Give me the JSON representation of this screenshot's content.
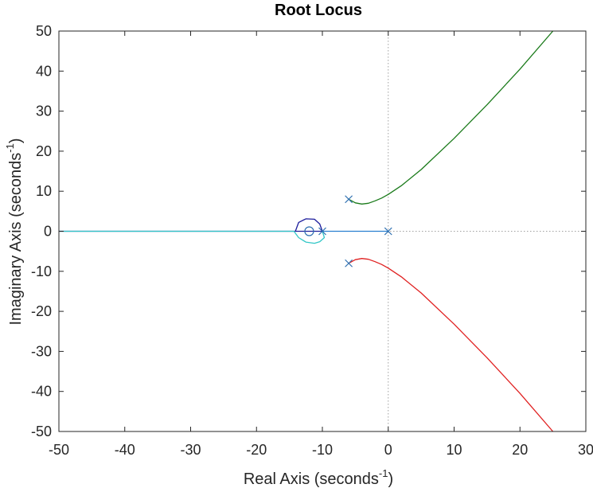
{
  "chart_data": {
    "type": "line",
    "title": "Root Locus",
    "xlabel": "Real Axis (seconds",
    "ylabel": "Imaginary Axis (seconds",
    "unit_exponent": "-1",
    "unit_close": ")",
    "xlim": [
      -50,
      30
    ],
    "ylim": [
      -50,
      50
    ],
    "xticks": [
      "-50",
      "-40",
      "-30",
      "-20",
      "-10",
      "0",
      "10",
      "20",
      "30"
    ],
    "yticks": [
      "50",
      "40",
      "30",
      "20",
      "10",
      "0",
      "-10",
      "-20",
      "-30",
      "-40",
      "-50"
    ],
    "grid": false,
    "legend": "none",
    "reference_lines": {
      "x": 0,
      "y": 0,
      "color": "#a0a0a0",
      "style": "dotted"
    },
    "poles": [
      [
        0,
        0
      ],
      [
        -10,
        0
      ],
      [
        -6,
        8
      ],
      [
        -6,
        -8
      ]
    ],
    "zeros": [
      [
        -12,
        0
      ]
    ],
    "pole_zero_color": "#2d6fb0",
    "series": [
      {
        "color": "#1c1c9c",
        "x": [
          -10,
          -10.4,
          -11.2,
          -12.5,
          -13.6,
          -14.1,
          -13.7,
          -12.5,
          -11.2,
          -10.4,
          -10,
          -10.4,
          -11.2,
          -12.5,
          -13.4,
          -14.1,
          -50
        ],
        "y": [
          0,
          1.8,
          3.0,
          3.1,
          2.2,
          0,
          0,
          0,
          0,
          0,
          0,
          0,
          0,
          0,
          0,
          0,
          0
        ]
      },
      {
        "color": "#2a7fd0",
        "x": [
          0,
          -2,
          -4,
          -6,
          -8,
          -10
        ],
        "y": [
          0,
          0,
          0,
          0,
          0,
          0
        ]
      },
      {
        "color": "#1a7a1a",
        "x": [
          -6,
          -5,
          -4,
          -3,
          -2,
          -1,
          0,
          2,
          5,
          10,
          15,
          20,
          25
        ],
        "y": [
          8,
          7.1,
          6.8,
          7.0,
          7.6,
          8.3,
          9.2,
          11.4,
          15.4,
          23.2,
          31.6,
          40.5,
          50
        ]
      },
      {
        "color": "#e02020",
        "x": [
          -6,
          -5,
          -4,
          -3,
          -2,
          -1,
          0,
          2,
          5,
          10,
          15,
          20,
          25
        ],
        "y": [
          -8,
          -7.1,
          -6.8,
          -7.0,
          -7.6,
          -8.3,
          -9.2,
          -11.4,
          -15.4,
          -23.2,
          -31.6,
          -40.5,
          -50
        ]
      },
      {
        "color": "#33c7c7",
        "x": [
          -10,
          -9.7,
          -10.4,
          -11.2,
          -12.5,
          -13.6,
          -14.1,
          -14.3,
          -20,
          -30,
          -40,
          -50
        ],
        "y": [
          0,
          -1.6,
          -2.6,
          -3.0,
          -2.7,
          -1.6,
          -0.5,
          0,
          0,
          0,
          0,
          0
        ]
      }
    ]
  }
}
